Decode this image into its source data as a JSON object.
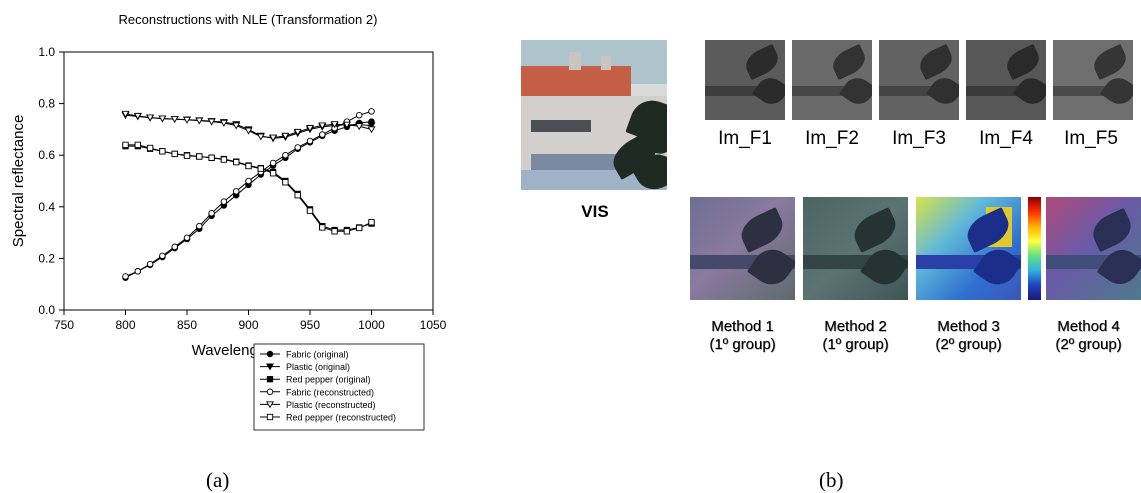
{
  "chart_data": {
    "type": "line",
    "title": "Reconstructions with NLE (Transformation 2)",
    "xlabel": "Wavelength (nm)",
    "ylabel": "Spectral reflectance",
    "xlim": [
      750,
      1050
    ],
    "ylim": [
      0.0,
      1.0
    ],
    "xticks": [
      "750",
      "800",
      "850",
      "900",
      "950",
      "1000",
      "1050"
    ],
    "yticks": [
      "0.0",
      "0.2",
      "0.4",
      "0.6",
      "0.8",
      "1.0"
    ],
    "x": [
      800,
      810,
      820,
      830,
      840,
      850,
      860,
      870,
      880,
      890,
      900,
      910,
      920,
      930,
      940,
      950,
      960,
      970,
      980,
      990,
      1000
    ],
    "series": [
      {
        "name": "Fabric (original)",
        "marker": "circle-filled",
        "values": [
          0.125,
          0.15,
          0.175,
          0.205,
          0.24,
          0.275,
          0.315,
          0.365,
          0.405,
          0.445,
          0.485,
          0.525,
          0.56,
          0.59,
          0.625,
          0.65,
          0.675,
          0.695,
          0.71,
          0.725,
          0.73
        ]
      },
      {
        "name": "Plastic (original)",
        "marker": "triangle-down-filled",
        "values": [
          0.755,
          0.75,
          0.745,
          0.742,
          0.74,
          0.738,
          0.735,
          0.732,
          0.728,
          0.72,
          0.7,
          0.675,
          0.665,
          0.67,
          0.685,
          0.7,
          0.71,
          0.715,
          0.718,
          0.718,
          0.715
        ]
      },
      {
        "name": "Red pepper (original)",
        "marker": "square-filled",
        "values": [
          0.635,
          0.635,
          0.625,
          0.615,
          0.605,
          0.6,
          0.595,
          0.59,
          0.585,
          0.575,
          0.56,
          0.55,
          0.535,
          0.5,
          0.45,
          0.39,
          0.325,
          0.31,
          0.31,
          0.32,
          0.335
        ]
      },
      {
        "name": "Fabric (reconstructed)",
        "marker": "circle-open",
        "values": [
          0.13,
          0.15,
          0.178,
          0.21,
          0.245,
          0.28,
          0.325,
          0.375,
          0.42,
          0.46,
          0.5,
          0.535,
          0.57,
          0.6,
          0.63,
          0.655,
          0.68,
          0.705,
          0.73,
          0.755,
          0.77
        ]
      },
      {
        "name": "Plastic (reconstructed)",
        "marker": "triangle-down-open",
        "values": [
          0.76,
          0.752,
          0.746,
          0.742,
          0.74,
          0.737,
          0.734,
          0.73,
          0.725,
          0.715,
          0.695,
          0.672,
          0.668,
          0.675,
          0.69,
          0.705,
          0.715,
          0.72,
          0.718,
          0.712,
          0.7
        ]
      },
      {
        "name": "Red pepper (reconstructed)",
        "marker": "square-open",
        "values": [
          0.64,
          0.64,
          0.628,
          0.615,
          0.605,
          0.598,
          0.595,
          0.59,
          0.583,
          0.573,
          0.558,
          0.548,
          0.53,
          0.495,
          0.445,
          0.385,
          0.32,
          0.305,
          0.305,
          0.318,
          0.34
        ]
      }
    ],
    "legend_position": "below"
  },
  "captions": {
    "a": "(a)",
    "b": "(b)"
  },
  "vis_label": "VIS",
  "filter_labels": [
    "Im_F1",
    "Im_F2",
    "Im_F3",
    "Im_F4",
    "Im_F5"
  ],
  "methods": [
    {
      "line1": "Method 1",
      "line2": "(1º group)"
    },
    {
      "line1": "Method 2",
      "line2": "(1º group)"
    },
    {
      "line1": "Method 3",
      "line2": "(2º group)"
    },
    {
      "line1": "Method 4",
      "line2": "(2º group)"
    }
  ]
}
